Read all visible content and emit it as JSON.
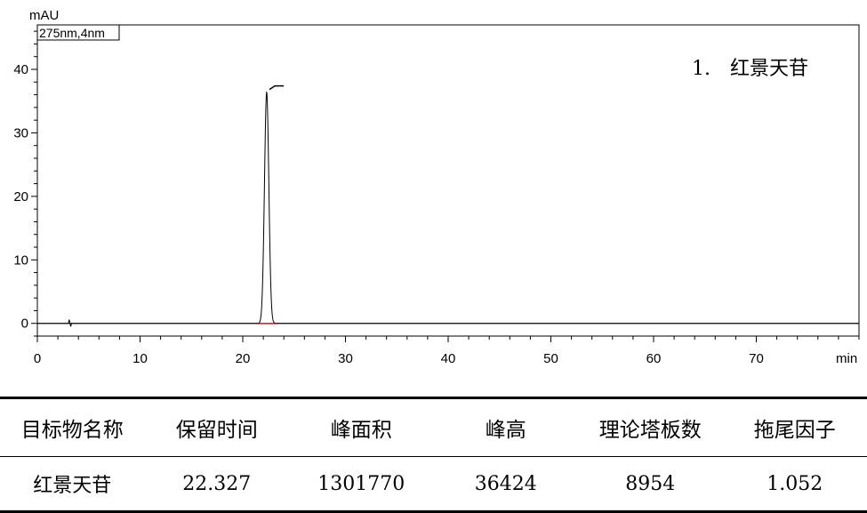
{
  "chart_data": {
    "type": "line",
    "ylabel": "mAU",
    "xlabel": "min",
    "channel": "275nm,4nm",
    "xlim": [
      0,
      80
    ],
    "ylim": [
      -2,
      47
    ],
    "x_ticks": [
      0,
      10,
      20,
      30,
      40,
      50,
      60,
      70
    ],
    "y_ticks": [
      0,
      10,
      20,
      30,
      40
    ],
    "baseline": 0,
    "peaks": [
      {
        "label": "1.　红景天苷",
        "retention_time": 22.327,
        "height_mAU": 36.4,
        "width_min": 0.5
      }
    ],
    "artifacts": [
      {
        "x": 3.1,
        "y": 0.6
      }
    ]
  },
  "table": {
    "headers": [
      "目标物名称",
      "保留时间",
      "峰面积",
      "峰高",
      "理论塔板数",
      "拖尾因子"
    ],
    "rows": [
      [
        "红景天苷",
        "22.327",
        "1301770",
        "36424",
        "8954",
        "1.052"
      ]
    ]
  }
}
